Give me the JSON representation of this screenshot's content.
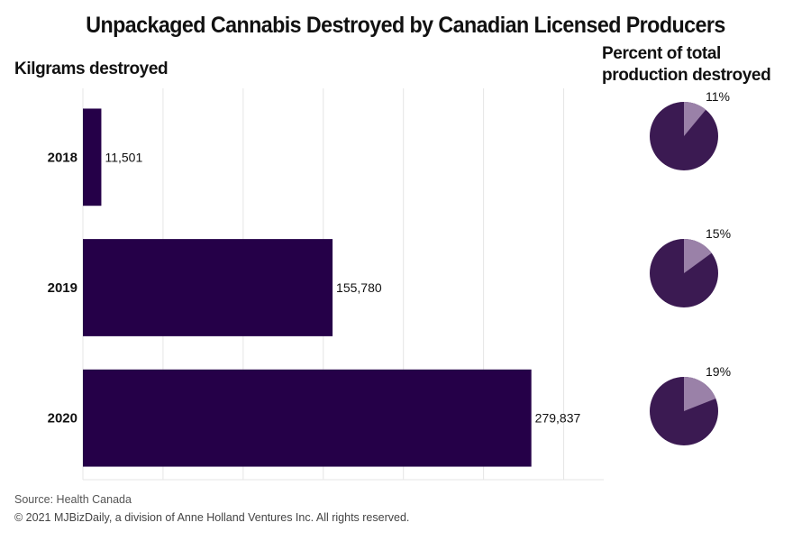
{
  "title": "Unpackaged Cannabis Destroyed by Canadian Licensed Producers",
  "bar_panel_label": "Kilgrams destroyed",
  "pie_panel_label_line1": "Percent of total",
  "pie_panel_label_line2": "production destroyed",
  "source": "Source: Health Canada",
  "copyright": "© 2021 MJBizDaily, a division of Anne Holland Ventures Inc. All rights reserved.",
  "colors": {
    "bar": "#250048",
    "pie_main": "#3b1a52",
    "pie_slice": "#9a81a8",
    "grid": "#e6e6e6"
  },
  "chart_data": [
    {
      "type": "bar",
      "orientation": "horizontal",
      "categories": [
        "2018",
        "2019",
        "2020"
      ],
      "values": [
        11501,
        155780,
        279837
      ],
      "value_labels": [
        "11,501",
        "155,780",
        "279,837"
      ],
      "xlabel": "",
      "ylabel": "Kilgrams destroyed",
      "xlim": [
        0,
        325000
      ],
      "grid": true,
      "axis_tick_labels_visible": false
    },
    {
      "type": "pie",
      "title": "Percent of total production destroyed",
      "categories": [
        "2018",
        "2019",
        "2020"
      ],
      "values": [
        11,
        15,
        19
      ],
      "value_labels": [
        "11%",
        "15%",
        "19%"
      ]
    }
  ]
}
